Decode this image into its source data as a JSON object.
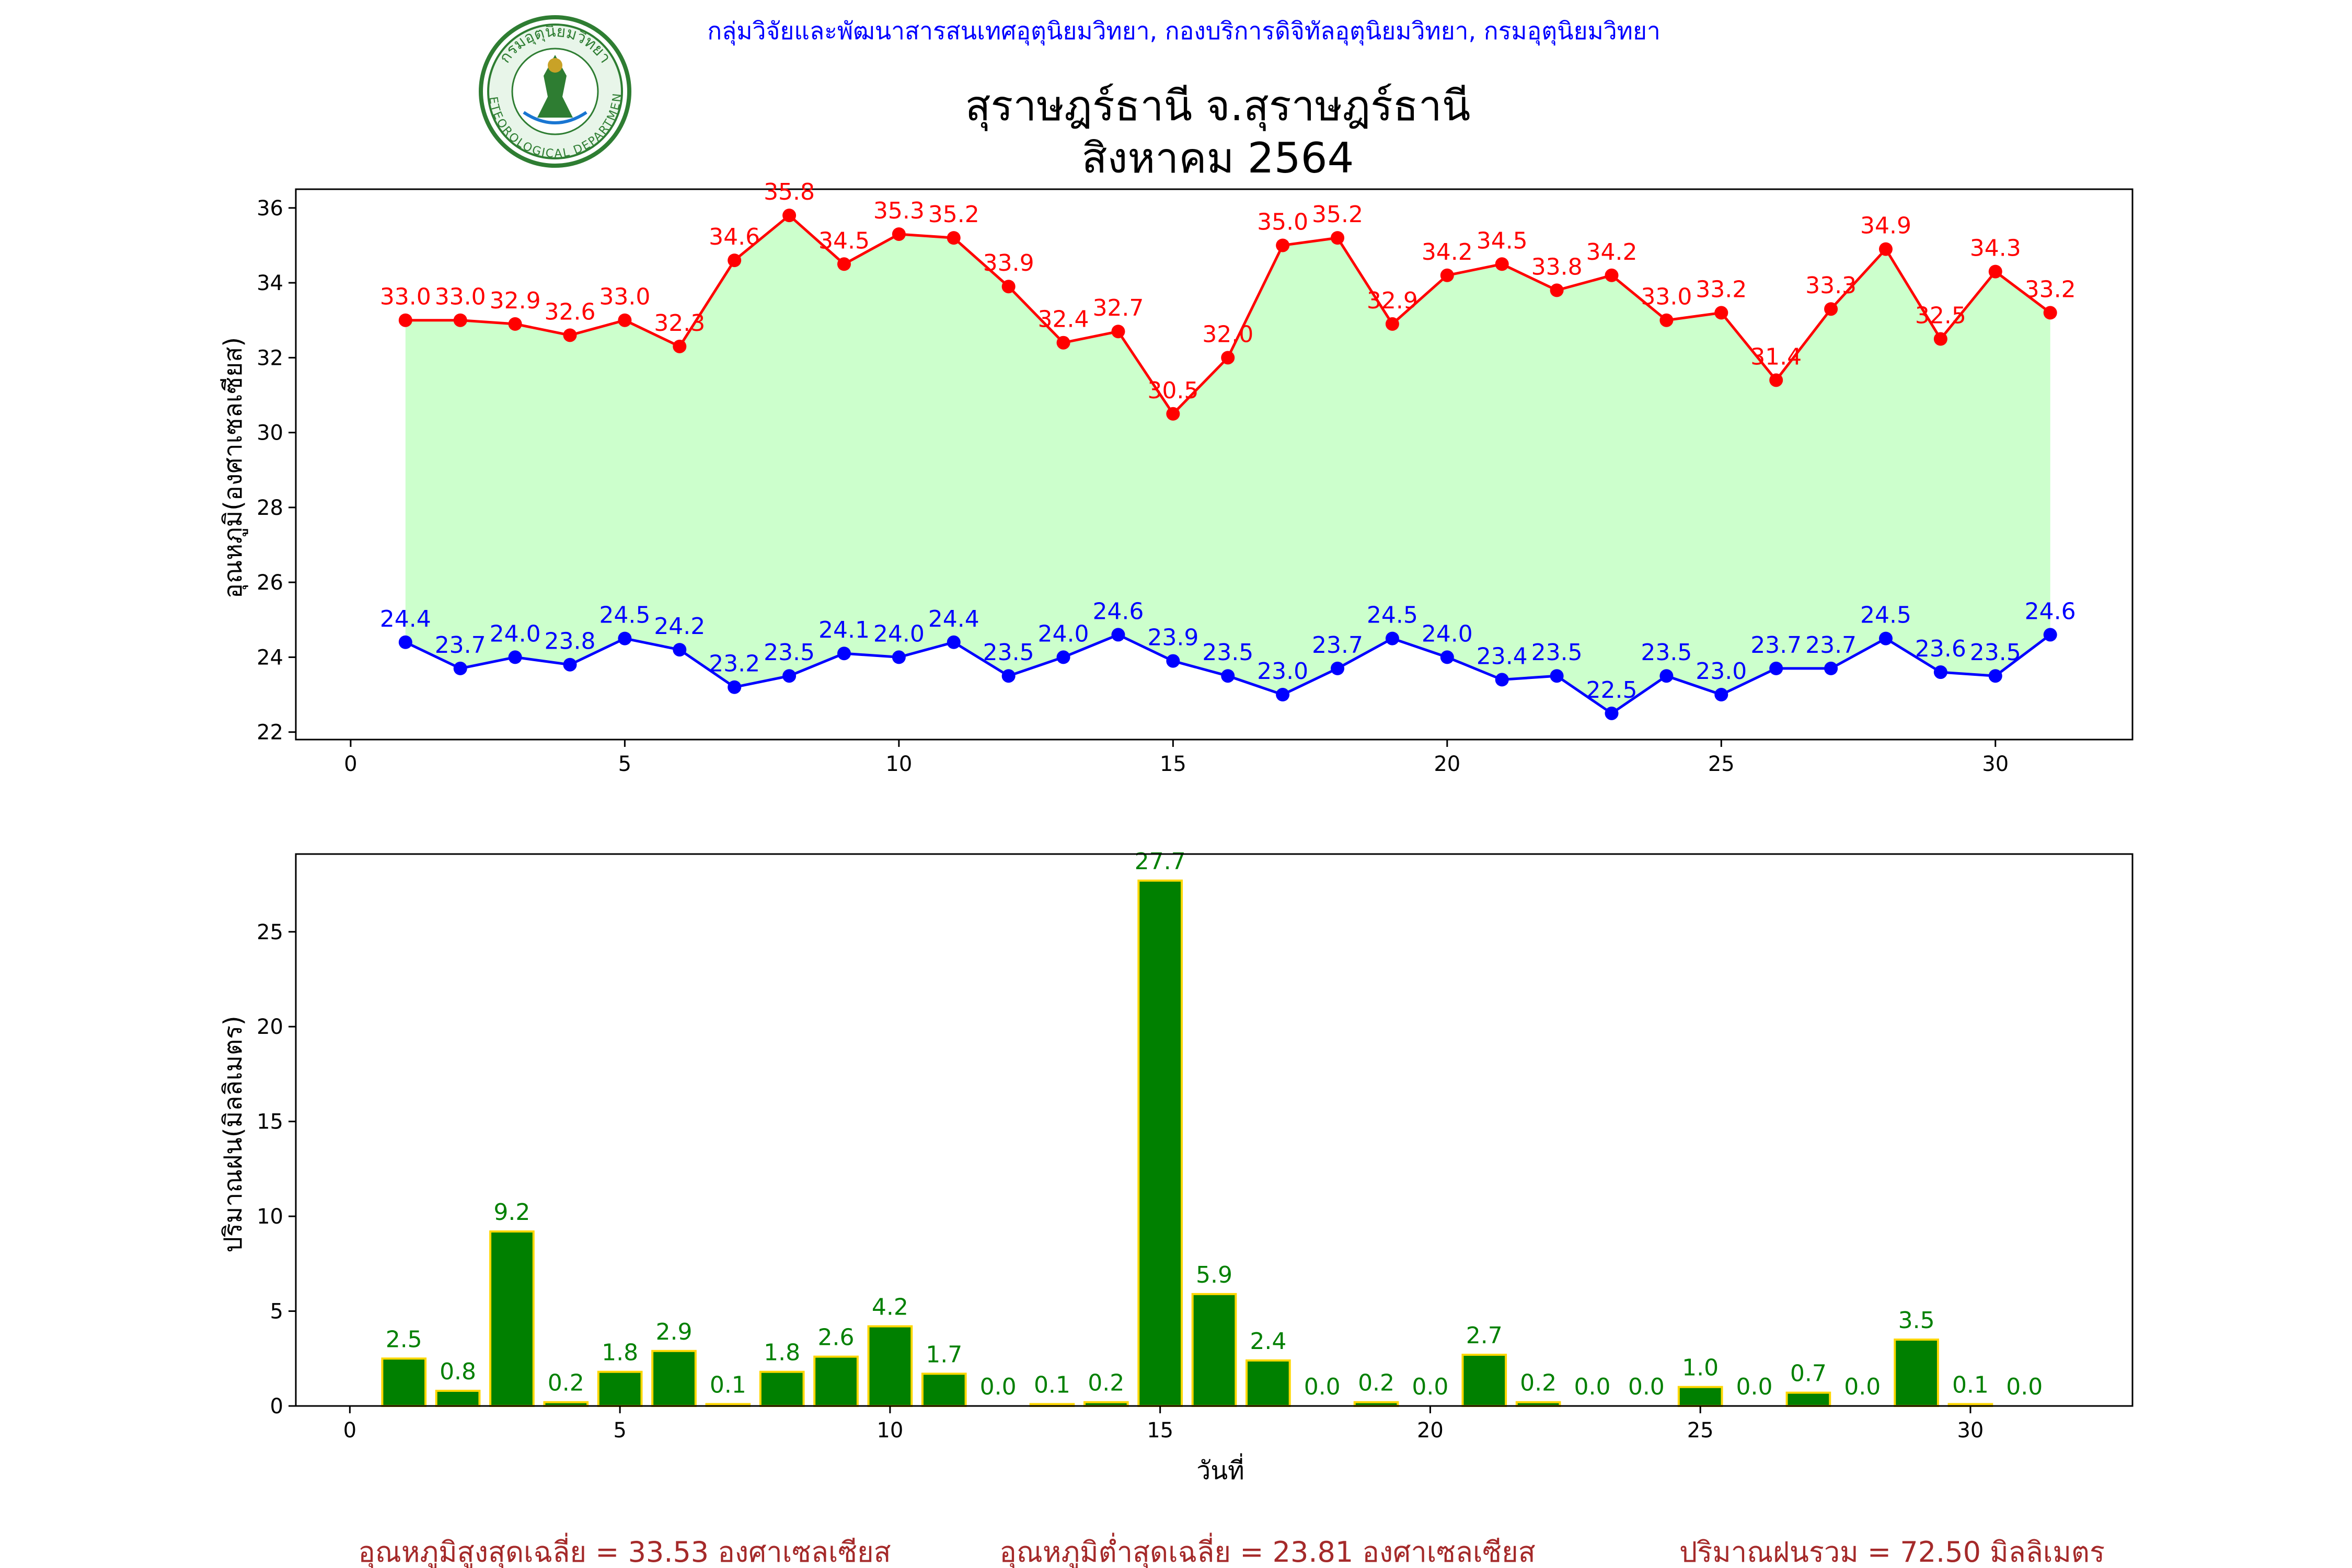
{
  "header": {
    "org_line": "กลุ่มวิจัยและพัฒนาสารสนเทศอุตุนิยมวิทยา, กองบริการดิจิทัลอุตุนิยมวิทยา, กรมอุตุนิยมวิทยา",
    "station_title": "สุราษฎร์ธานี จ.สุราษฎร์ธานี",
    "period_title": "สิงหาคม 2564",
    "logo_top_text": "กรมอุตุนิยมวิทยา",
    "logo_bottom_text": "METEOROLOGICAL DEPARTMENT"
  },
  "colors": {
    "max_line": "#ff0000",
    "min_line": "#0000ff",
    "band_fill": "#ccffcc",
    "bar_fill": "#008000",
    "bar_edge": "#ffd700",
    "bar_label": "#008000",
    "header_text": "#0000ff",
    "footer_text": "#a52a2a"
  },
  "chart_data": [
    {
      "type": "line",
      "ylabel": "อุณหภูมิ(องศาเซลเซียส)",
      "xlabel": "",
      "xlim": [
        -1,
        32.5
      ],
      "ylim": [
        21.8,
        36.5
      ],
      "xticks": [
        0,
        5,
        10,
        15,
        20,
        25,
        30
      ],
      "yticks": [
        22,
        24,
        26,
        28,
        30,
        32,
        34,
        36
      ],
      "grid": false,
      "x": [
        1,
        2,
        3,
        4,
        5,
        6,
        7,
        8,
        9,
        10,
        11,
        12,
        13,
        14,
        15,
        16,
        17,
        18,
        19,
        20,
        21,
        22,
        23,
        24,
        25,
        26,
        27,
        28,
        29,
        30,
        31
      ],
      "series": [
        {
          "key": "max",
          "values": [
            33.0,
            33.0,
            32.9,
            32.6,
            33.0,
            32.3,
            34.6,
            35.8,
            34.5,
            35.3,
            35.2,
            33.9,
            32.4,
            32.7,
            30.5,
            32.0,
            35.0,
            35.2,
            32.9,
            34.2,
            34.5,
            33.8,
            34.2,
            33.0,
            33.2,
            31.4,
            33.3,
            34.9,
            32.5,
            34.3,
            33.2
          ]
        },
        {
          "key": "min",
          "values": [
            24.4,
            23.7,
            24.0,
            23.8,
            24.5,
            24.2,
            23.2,
            23.5,
            24.1,
            24.0,
            24.4,
            23.5,
            24.0,
            24.6,
            23.9,
            23.5,
            23.0,
            23.7,
            24.5,
            24.0,
            23.4,
            23.5,
            22.5,
            23.5,
            23.0,
            23.7,
            23.7,
            24.5,
            23.6,
            23.5,
            24.6
          ]
        }
      ]
    },
    {
      "type": "bar",
      "ylabel": "ปริมาณฝน(มิลลิเมตร)",
      "xlabel": "วันที่",
      "xlim": [
        -1,
        33
      ],
      "ylim": [
        0,
        29.1
      ],
      "xticks": [
        0,
        5,
        10,
        15,
        20,
        25,
        30
      ],
      "yticks": [
        0,
        5,
        10,
        15,
        20,
        25
      ],
      "grid": false,
      "x": [
        1,
        2,
        3,
        4,
        5,
        6,
        7,
        8,
        9,
        10,
        11,
        12,
        13,
        14,
        15,
        16,
        17,
        18,
        19,
        20,
        21,
        22,
        23,
        24,
        25,
        26,
        27,
        28,
        29,
        30,
        31
      ],
      "values": [
        2.5,
        0.8,
        9.2,
        0.2,
        1.8,
        2.9,
        0.1,
        1.8,
        2.6,
        4.2,
        1.7,
        0.0,
        0.1,
        0.2,
        27.7,
        5.9,
        2.4,
        0.0,
        0.2,
        0.0,
        2.7,
        0.2,
        0.0,
        0.0,
        1.0,
        0.0,
        0.7,
        0.0,
        3.5,
        0.1,
        0.0
      ]
    }
  ],
  "footer": {
    "avg_max": "อุณหภูมิสูงสุดเฉลี่ย = 33.53 องศาเซลเซียส",
    "avg_min": "อุณหภูมิต่ำสุดเฉลี่ย = 23.81 องศาเซลเซียส",
    "total_rain": "ปริมาณฝนรวม = 72.50 มิลลิเมตร"
  }
}
